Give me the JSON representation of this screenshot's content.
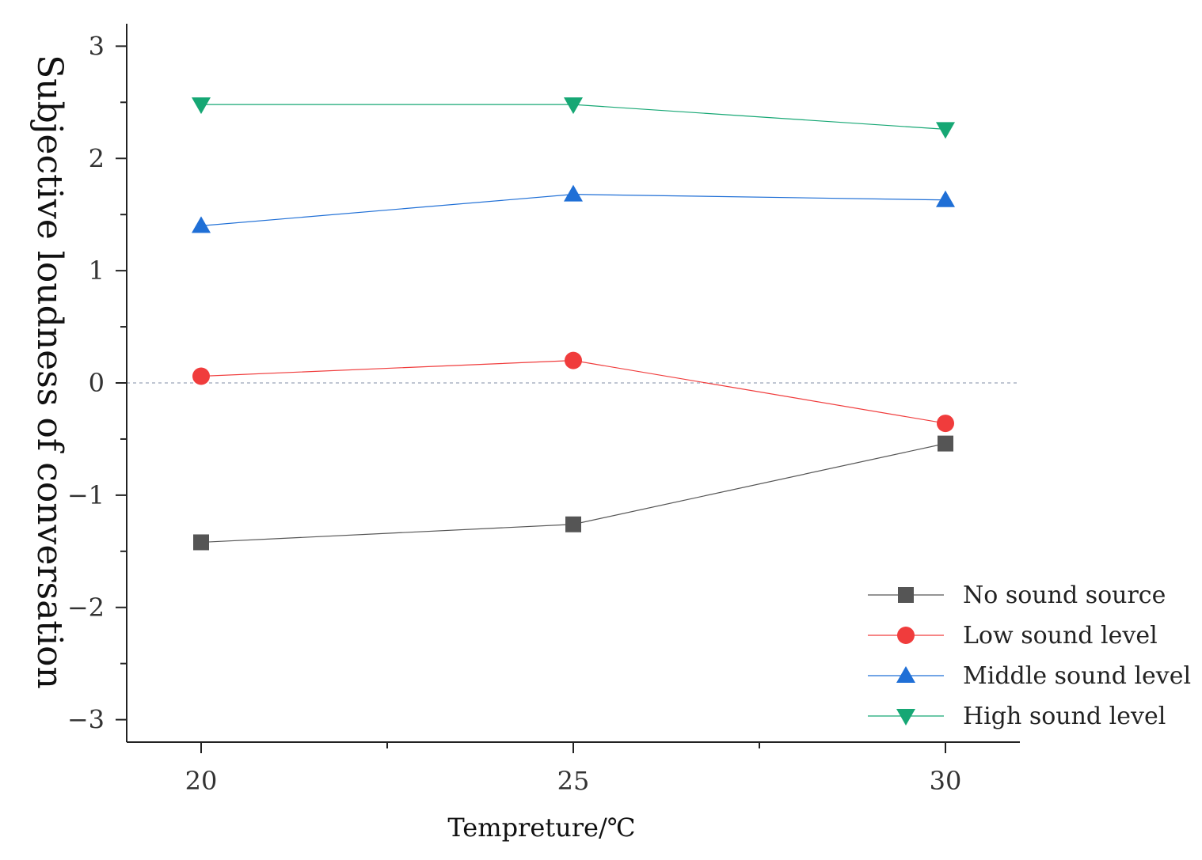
{
  "chart_data": {
    "type": "line",
    "title": "",
    "xlabel": "Tempreture∕℃",
    "ylabel": "Subjective loudness of conversation",
    "x": [
      20,
      25,
      30
    ],
    "xlim": [
      19,
      31
    ],
    "ylim": [
      -3.2,
      3.2
    ],
    "xticks": [
      20,
      25,
      30
    ],
    "yticks": [
      -3,
      -2,
      -1,
      0,
      1,
      2,
      3
    ],
    "ytick_labels": [
      "−3",
      "−2",
      "−1",
      "0",
      "1",
      "2",
      "3"
    ],
    "reference_line": {
      "y": 0,
      "style": "dashed"
    },
    "legend_position": "bottom-right",
    "series": [
      {
        "name": "No sound source",
        "values": [
          -1.42,
          -1.26,
          -0.54
        ],
        "color": "#555555",
        "marker": "square"
      },
      {
        "name": "Low sound level",
        "values": [
          0.06,
          0.2,
          -0.36
        ],
        "color": "#f03c3c",
        "marker": "circle"
      },
      {
        "name": "Middle sound level",
        "values": [
          1.4,
          1.68,
          1.63
        ],
        "color": "#1f6fd6",
        "marker": "triangle-up"
      },
      {
        "name": "High sound level",
        "values": [
          2.48,
          2.48,
          2.26
        ],
        "color": "#16a774",
        "marker": "triangle-down"
      }
    ]
  }
}
